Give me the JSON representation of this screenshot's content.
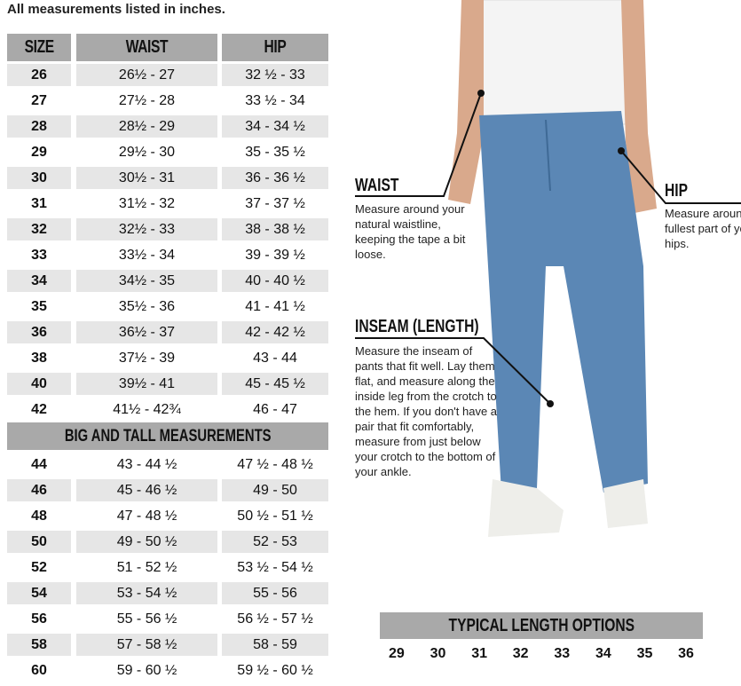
{
  "note": "All measurements listed in inches.",
  "headers": {
    "size": "SIZE",
    "waist": "WAIST",
    "hip": "HIP"
  },
  "rows": [
    {
      "size": "26",
      "waist": "26½ - 27",
      "hip": "32 ½ - 33"
    },
    {
      "size": "27",
      "waist": "27½ - 28",
      "hip": "33 ½ - 34"
    },
    {
      "size": "28",
      "waist": "28½ - 29",
      "hip": "34 - 34 ½"
    },
    {
      "size": "29",
      "waist": "29½ - 30",
      "hip": "35 - 35 ½"
    },
    {
      "size": "30",
      "waist": "30½ - 31",
      "hip": "36 - 36 ½"
    },
    {
      "size": "31",
      "waist": "31½ - 32",
      "hip": "37 - 37 ½"
    },
    {
      "size": "32",
      "waist": "32½ - 33",
      "hip": "38 - 38 ½"
    },
    {
      "size": "33",
      "waist": "33½ - 34",
      "hip": "39 - 39 ½"
    },
    {
      "size": "34",
      "waist": "34½ - 35",
      "hip": "40 - 40 ½"
    },
    {
      "size": "35",
      "waist": "35½ - 36",
      "hip": "41 - 41 ½"
    },
    {
      "size": "36",
      "waist": "36½ - 37",
      "hip": "42 - 42 ½"
    },
    {
      "size": "38",
      "waist": "37½ - 39",
      "hip": "43 - 44"
    },
    {
      "size": "40",
      "waist": "39½ - 41",
      "hip": "45 - 45 ½"
    },
    {
      "size": "42",
      "waist": "41½ - 42¾",
      "hip": "46 - 47"
    }
  ],
  "big_tall_title": "BIG AND TALL MEASUREMENTS",
  "big_tall_rows": [
    {
      "size": "44",
      "waist": "43 - 44 ½",
      "hip": "47 ½ - 48 ½"
    },
    {
      "size": "46",
      "waist": "45 - 46 ½",
      "hip": "49 - 50"
    },
    {
      "size": "48",
      "waist": "47 - 48 ½",
      "hip": "50 ½ - 51 ½"
    },
    {
      "size": "50",
      "waist": "49 - 50 ½",
      "hip": "52 - 53"
    },
    {
      "size": "52",
      "waist": "51 - 52 ½",
      "hip": "53 ½ - 54 ½"
    },
    {
      "size": "54",
      "waist": "53 - 54 ½",
      "hip": "55 - 56"
    },
    {
      "size": "56",
      "waist": "55 - 56 ½",
      "hip": "56 ½ - 57 ½"
    },
    {
      "size": "58",
      "waist": "57 - 58 ½",
      "hip": "58 - 59"
    },
    {
      "size": "60",
      "waist": "59 - 60 ½",
      "hip": "59 ½ - 60 ½"
    }
  ],
  "figure": {
    "waist": {
      "title": "WAIST",
      "desc": "Measure around your natural waistline, keeping the tape a bit loose."
    },
    "hip": {
      "title": "HIP",
      "desc": "Measure around the fullest part of your hips."
    },
    "inseam": {
      "title": "INSEAM (LENGTH)",
      "desc": "Measure the inseam of pants that fit well. Lay them flat, and measure along the inside leg from the crotch to the hem. If you don't have a pair that fit comfortably, measure from just below your crotch to the bottom of your ankle."
    }
  },
  "lengths": {
    "title": "TYPICAL LENGTH OPTIONS",
    "values": [
      "29",
      "30",
      "31",
      "32",
      "33",
      "34",
      "35",
      "36"
    ]
  },
  "colors": {
    "header_gray": "#a9a9a9",
    "row_gray": "#e6e6e6",
    "denim": "#5b87b5"
  }
}
